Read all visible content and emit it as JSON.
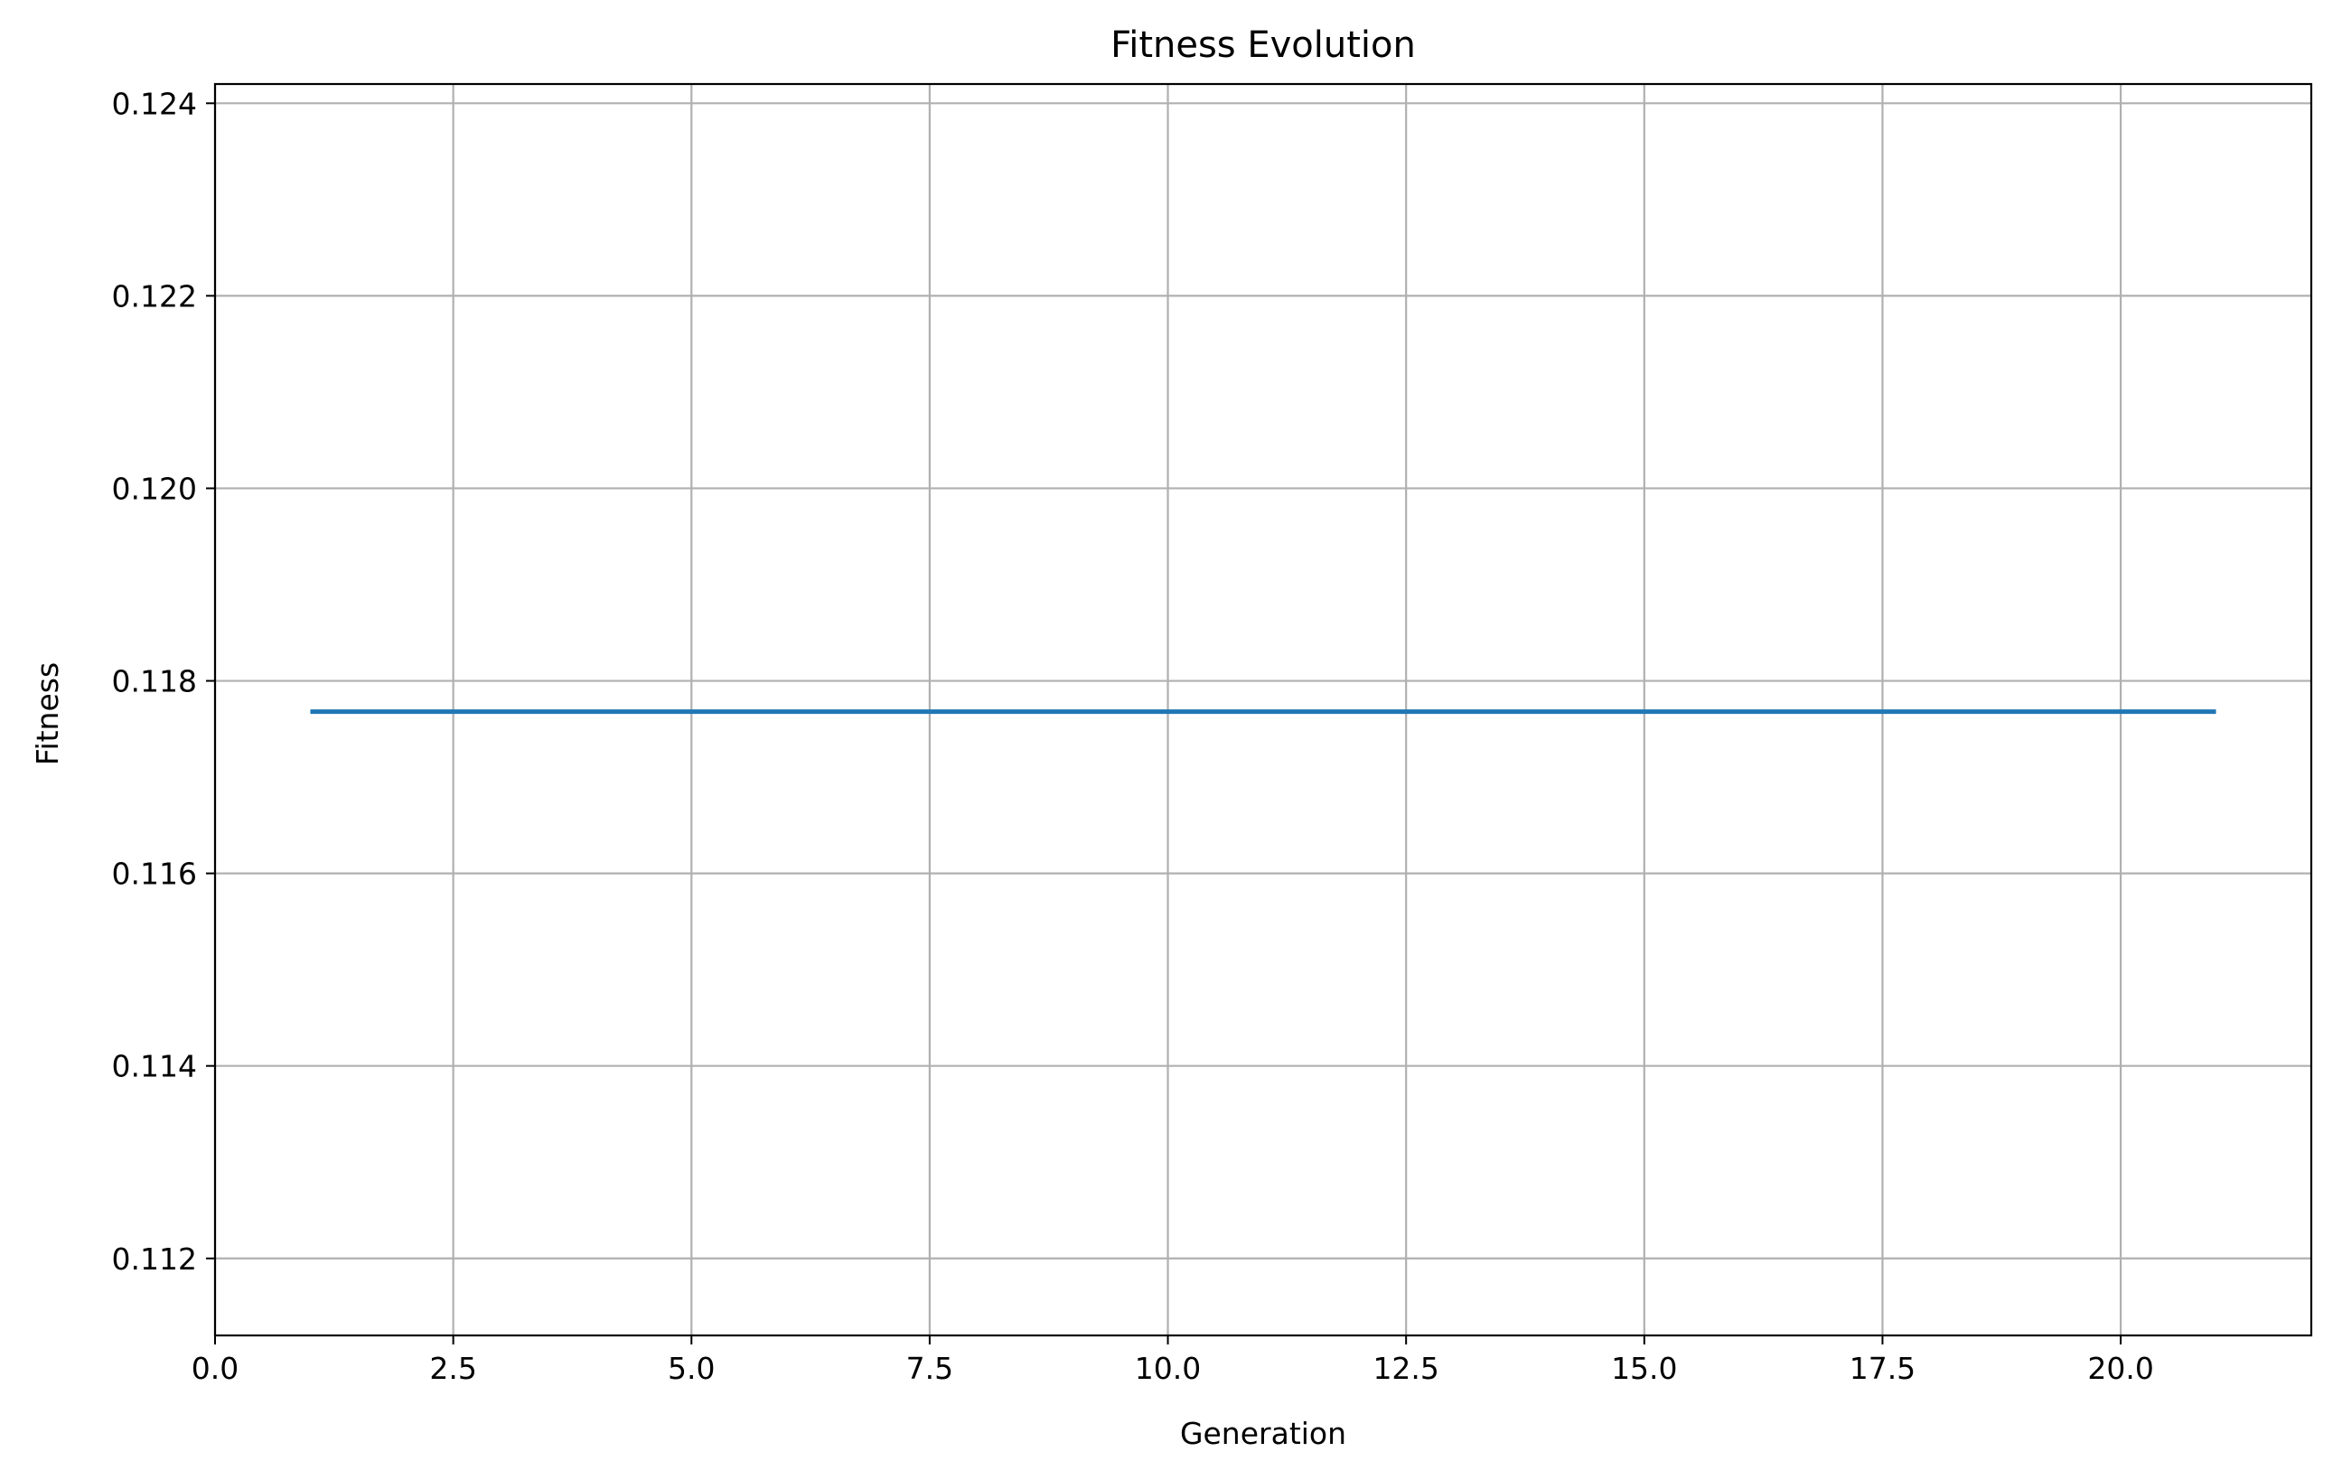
{
  "chart_data": {
    "type": "line",
    "title": "Fitness Evolution",
    "xlabel": "Generation",
    "ylabel": "Fitness",
    "xlim": [
      0,
      22
    ],
    "ylim": [
      0.1112,
      0.1242
    ],
    "xticks": [
      0.0,
      2.5,
      5.0,
      7.5,
      10.0,
      12.5,
      15.0,
      17.5,
      20.0
    ],
    "xtick_labels": [
      "0.0",
      "2.5",
      "5.0",
      "7.5",
      "10.0",
      "12.5",
      "15.0",
      "17.5",
      "20.0"
    ],
    "yticks": [
      0.112,
      0.114,
      0.116,
      0.118,
      0.12,
      0.122,
      0.124
    ],
    "ytick_labels": [
      "0.112",
      "0.114",
      "0.116",
      "0.118",
      "0.120",
      "0.122",
      "0.124"
    ],
    "grid": true,
    "series": [
      {
        "name": "Fitness",
        "color": "#1f77b4",
        "x": [
          1,
          2,
          3,
          4,
          5,
          6,
          7,
          8,
          9,
          10,
          11,
          12,
          13,
          14,
          15,
          16,
          17,
          18,
          19,
          20,
          21
        ],
        "values": [
          0.11768,
          0.11768,
          0.11768,
          0.11768,
          0.11768,
          0.11768,
          0.11768,
          0.11768,
          0.11768,
          0.11768,
          0.11768,
          0.11768,
          0.11768,
          0.11768,
          0.11768,
          0.11768,
          0.11768,
          0.11768,
          0.11768,
          0.11768,
          0.11768
        ]
      }
    ]
  },
  "colors": {
    "grid": "#b0b0b0",
    "axes": "#000000",
    "background": "#ffffff"
  }
}
